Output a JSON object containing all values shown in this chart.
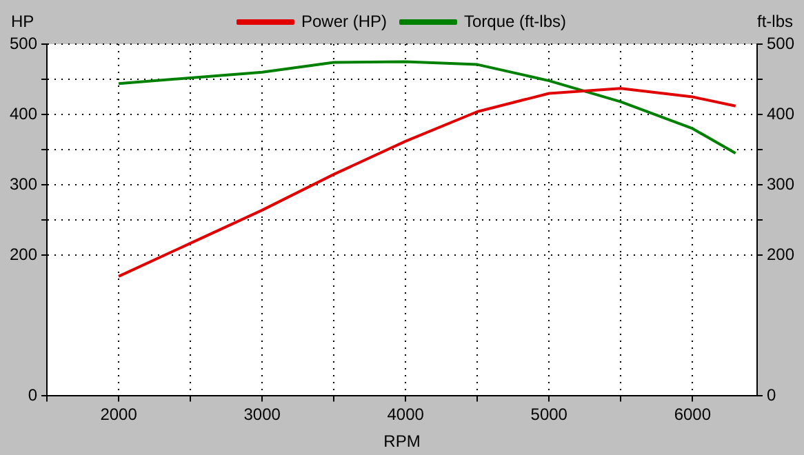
{
  "chart_data": {
    "type": "line",
    "xlabel": "RPM",
    "ylabel": "HP",
    "y2label": "ft-lbs",
    "x": [
      2000,
      2500,
      3000,
      3500,
      4000,
      4500,
      5000,
      5500,
      6000,
      6300
    ],
    "series": [
      {
        "name": "Power (HP)",
        "color": "#e00000",
        "values": [
          170,
          217,
          264,
          315,
          362,
          404,
          430,
          437,
          425,
          412
        ]
      },
      {
        "name": "Torque (ft-lbs)",
        "color": "#008000",
        "axis": "y2",
        "values": [
          444,
          452,
          460,
          474,
          475,
          471,
          448,
          418,
          380,
          345
        ]
      }
    ],
    "xlim": [
      1500,
      6450
    ],
    "xticks": [
      {
        "value": 1500,
        "label": null
      },
      2000,
      {
        "value": 2500,
        "label": null
      },
      3000,
      {
        "value": 3500,
        "label": null
      },
      4000,
      {
        "value": 4500,
        "label": null
      },
      5000,
      {
        "value": 5500,
        "label": null
      },
      6000
    ],
    "ylim": [
      0,
      500
    ],
    "yticks": [
      0,
      200,
      {
        "value": 250,
        "label": null
      },
      300,
      {
        "value": 350,
        "label": null
      },
      400,
      {
        "value": 450,
        "label": null
      },
      500
    ],
    "y2lim": [
      0,
      500
    ],
    "y2ticks": [
      0,
      200,
      {
        "value": 250,
        "label": null
      },
      300,
      {
        "value": 350,
        "label": null
      },
      400,
      {
        "value": 450,
        "label": null
      },
      500
    ],
    "grid": true,
    "legend": "top",
    "marker": "none",
    "line_style": "solid"
  }
}
